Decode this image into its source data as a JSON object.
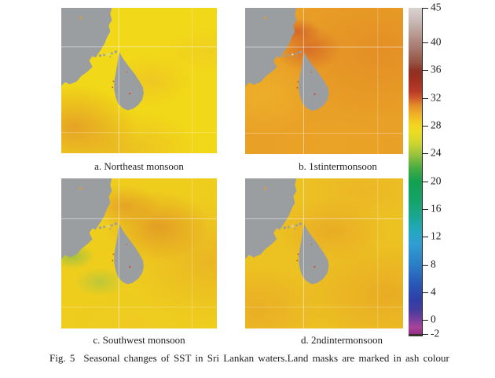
{
  "figure": {
    "caption_fig": "Fig. 5",
    "caption_text": "Seasonal changes of SST in Sri Lankan waters.Land masks are marked in ash colour"
  },
  "panels": [
    {
      "label": "a. Northeast monsoon"
    },
    {
      "label": "b. 1stintermonsoon"
    },
    {
      "label": "c. Southwest monsoon"
    },
    {
      "label": "d. 2ndintermonsoon"
    }
  ],
  "colorbar": {
    "min": -2,
    "max": 45,
    "ticks": [
      45,
      40,
      36,
      32,
      28,
      24,
      20,
      16,
      12,
      8,
      4,
      0,
      -2
    ],
    "stops": [
      {
        "v": -2,
        "c": "#952e84"
      },
      {
        "v": -1,
        "c": "#a8439a"
      },
      {
        "v": 0,
        "c": "#7a3f9e"
      },
      {
        "v": 1.5,
        "c": "#463c9e"
      },
      {
        "v": 3,
        "c": "#2e3fa6"
      },
      {
        "v": 5,
        "c": "#2a55b6"
      },
      {
        "v": 8,
        "c": "#2b7ec6"
      },
      {
        "v": 11,
        "c": "#2f9ed2"
      },
      {
        "v": 13,
        "c": "#21a8bb"
      },
      {
        "v": 15,
        "c": "#1aa690"
      },
      {
        "v": 17,
        "c": "#16a36b"
      },
      {
        "v": 20,
        "c": "#12a050"
      },
      {
        "v": 22,
        "c": "#4bad42"
      },
      {
        "v": 24,
        "c": "#9fc43c"
      },
      {
        "v": 25.5,
        "c": "#cfd52e"
      },
      {
        "v": 27,
        "c": "#eadc22"
      },
      {
        "v": 28,
        "c": "#f2d71e"
      },
      {
        "v": 29,
        "c": "#f2c122"
      },
      {
        "v": 30,
        "c": "#eda826"
      },
      {
        "v": 31,
        "c": "#e38b29"
      },
      {
        "v": 32,
        "c": "#d0592a"
      },
      {
        "v": 33,
        "c": "#b83a26"
      },
      {
        "v": 35,
        "c": "#9b2e21"
      },
      {
        "v": 36,
        "c": "#8e3425"
      },
      {
        "v": 37,
        "c": "#95503f"
      },
      {
        "v": 39,
        "c": "#a5746a"
      },
      {
        "v": 41,
        "c": "#b6968e"
      },
      {
        "v": 43,
        "c": "#c8b8b3"
      },
      {
        "v": 45,
        "c": "#d9d3d1"
      }
    ]
  },
  "colors": {
    "land_mask": "#9a9ea1",
    "grid_line": "#ffffff",
    "panel_a_sea": "#f1d818",
    "panel_b_sea": "#e9a026",
    "panel_c_sea": "#eecd1d",
    "panel_d_sea": "#ecc122"
  },
  "chart_data": {
    "type": "heatmap",
    "title": "Fig. 5 Seasonal changes of SST in Sri Lankan waters. Land masks are marked in ash colour",
    "layout": "2x2 map panels (South India + Sri Lanka region) with shared vertical colorbar on right",
    "colorbar": {
      "orientation": "vertical",
      "position": "right",
      "min": -2,
      "max": 45,
      "ticks": [
        45,
        40,
        36,
        32,
        28,
        24,
        20,
        16,
        12,
        8,
        4,
        0,
        -2
      ],
      "scale_colors_low_to_high": [
        "magenta",
        "purple",
        "blue",
        "cyan-blue",
        "teal",
        "green",
        "yellow-green",
        "yellow",
        "orange",
        "red",
        "dark red",
        "brown",
        "light gray"
      ]
    },
    "panels": [
      {
        "label": "a. Northeast monsoon",
        "dominant_sst_approx": 27.5,
        "range_approx": [
          26.5,
          29.5
        ],
        "notes": "mostly bright yellow (~27-28); orange (~29-30) patch in southwest near Indian coast"
      },
      {
        "label": "b. 1stintermonsoon",
        "dominant_sst_approx": 29.5,
        "range_approx": [
          28,
          31.5
        ],
        "notes": "mostly orange (~29-30); darker orange-red (~31) northeast of Sri Lanka and in Palk Strait"
      },
      {
        "label": "c. Southwest monsoon",
        "dominant_sst_approx": 28.5,
        "range_approx": [
          24,
          30
        ],
        "notes": "yellow west (~27-28) with small green patch (~23-24) southwest of island; orange (~29-30) east of Sri Lanka"
      },
      {
        "label": "d. 2ndintermonsoon",
        "dominant_sst_approx": 28.5,
        "range_approx": [
          27.5,
          30
        ],
        "notes": "yellow-orange (~28-29) throughout with orange (~29-30) patches southwest and east"
      }
    ],
    "land_mask": "ash colour (gray)"
  }
}
